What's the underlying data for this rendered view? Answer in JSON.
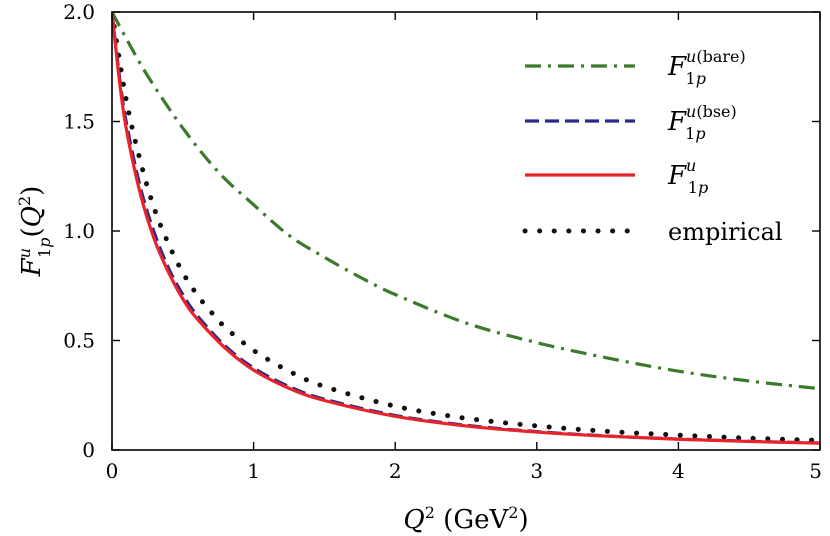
{
  "chart_data": {
    "type": "line",
    "xlabel": "Q² (GeV²)",
    "ylabel": "F^u_1p(Q²)",
    "xlim": [
      0,
      5
    ],
    "ylim": [
      0,
      2
    ],
    "xticks": [
      0,
      1,
      2,
      3,
      4,
      5
    ],
    "yticks": [
      0,
      0.5,
      1.0,
      1.5,
      2.0
    ],
    "xtick_labels": [
      "0",
      "1",
      "2",
      "3",
      "4",
      "5"
    ],
    "ytick_labels": [
      "0",
      "0.5",
      "1.0",
      "1.5",
      "2.0"
    ],
    "grid": false,
    "legend_position": "top-right",
    "series": [
      {
        "name": "F^u(bare)_1p",
        "legend_main": "F",
        "legend_sup": "u(bare)",
        "legend_sub": "1p",
        "color": "#3a7a2a",
        "style": "dash-dot",
        "x": [
          0,
          0.1,
          0.25,
          0.5,
          0.75,
          1.0,
          1.25,
          1.5,
          1.75,
          2.0,
          2.5,
          3.0,
          3.5,
          4.0,
          4.5,
          5.0
        ],
        "y": [
          2.0,
          1.88,
          1.71,
          1.47,
          1.27,
          1.12,
          0.98,
          0.88,
          0.79,
          0.71,
          0.58,
          0.49,
          0.42,
          0.36,
          0.315,
          0.28
        ]
      },
      {
        "name": "F^u(bse)_1p",
        "legend_main": "F",
        "legend_sup": "u(bse)",
        "legend_sub": "1p",
        "color": "#2a2a8a",
        "style": "dashed",
        "x": [
          0,
          0.05,
          0.1,
          0.2,
          0.3,
          0.4,
          0.5,
          0.6,
          0.8,
          1.0,
          1.25,
          1.5,
          2.0,
          2.5,
          3.0,
          3.5,
          4.0,
          4.5,
          5.0
        ],
        "y": [
          2.0,
          1.72,
          1.5,
          1.2,
          0.99,
          0.83,
          0.71,
          0.615,
          0.475,
          0.375,
          0.29,
          0.232,
          0.158,
          0.113,
          0.084,
          0.064,
          0.05,
          0.04,
          0.032
        ]
      },
      {
        "name": "F^u_1p",
        "legend_main": "F",
        "legend_sup": "u",
        "legend_sub": "1p",
        "color": "#e8232a",
        "style": "solid",
        "x": [
          0,
          0.05,
          0.1,
          0.2,
          0.3,
          0.4,
          0.5,
          0.6,
          0.8,
          1.0,
          1.25,
          1.5,
          2.0,
          2.5,
          3.0,
          3.5,
          4.0,
          4.5,
          5.0
        ],
        "y": [
          2.0,
          1.7,
          1.47,
          1.17,
          0.96,
          0.81,
          0.69,
          0.6,
          0.465,
          0.365,
          0.282,
          0.226,
          0.154,
          0.11,
          0.082,
          0.063,
          0.049,
          0.039,
          0.031
        ]
      },
      {
        "name": "empirical",
        "legend_main": "empirical",
        "color": "#111111",
        "style": "dotted",
        "x": [
          0,
          0.1,
          0.2,
          0.3,
          0.4,
          0.5,
          0.6,
          0.7,
          0.8,
          1.0,
          1.25,
          1.5,
          2.0,
          2.5,
          3.0,
          3.5,
          4.0,
          4.5,
          5.0
        ],
        "y": [
          2.0,
          1.6,
          1.32,
          1.1,
          0.94,
          0.81,
          0.71,
          0.63,
          0.56,
          0.455,
          0.36,
          0.29,
          0.2,
          0.145,
          0.11,
          0.085,
          0.068,
          0.054,
          0.044
        ]
      }
    ]
  }
}
